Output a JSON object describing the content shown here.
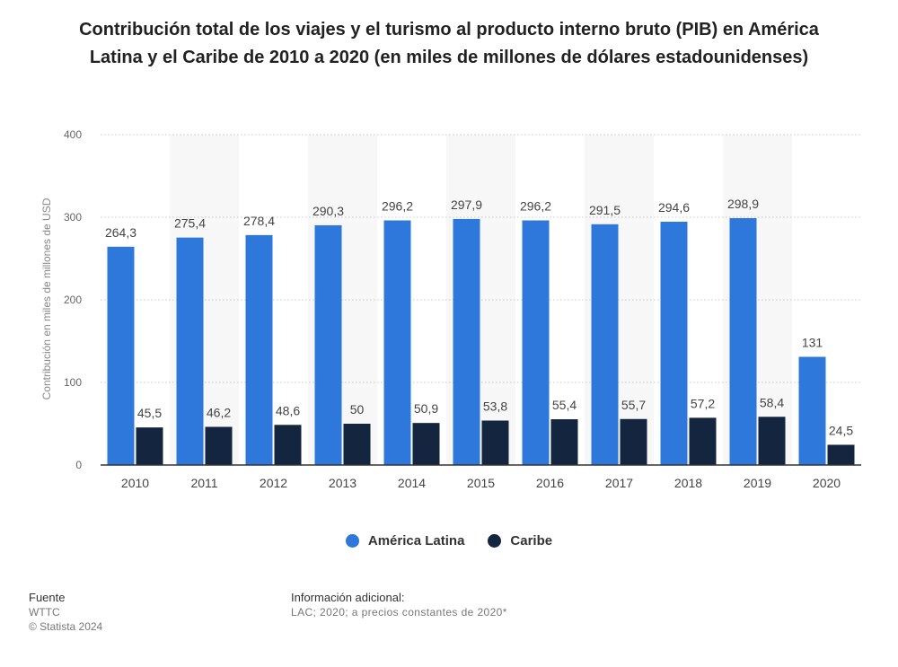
{
  "title": "Contribución total de los viajes y el turismo al producto interno bruto (PIB) en América Latina y el Caribe de 2010 a 2020 (en miles de millones de dólares estadounidenses)",
  "chart_data": {
    "type": "bar",
    "categories": [
      "2010",
      "2011",
      "2012",
      "2013",
      "2014",
      "2015",
      "2016",
      "2017",
      "2018",
      "2019",
      "2020"
    ],
    "series": [
      {
        "name": "América Latina",
        "color": "#2E78DC",
        "values": [
          264.3,
          275.4,
          278.4,
          290.3,
          296.2,
          297.9,
          296.2,
          291.5,
          294.6,
          298.9,
          131
        ],
        "labels": [
          "264,3",
          "275,4",
          "278,4",
          "290,3",
          "296,2",
          "297,9",
          "296,2",
          "291,5",
          "294,6",
          "298,9",
          "131"
        ]
      },
      {
        "name": "Caribe",
        "color": "#14253F",
        "values": [
          45.5,
          46.2,
          48.6,
          50,
          50.9,
          53.8,
          55.4,
          55.7,
          57.2,
          58.4,
          24.5
        ],
        "labels": [
          "45,5",
          "46,2",
          "48,6",
          "50",
          "50,9",
          "53,8",
          "55,4",
          "55,7",
          "57,2",
          "58,4",
          "24,5"
        ]
      }
    ],
    "ylabel": "Contribución en miles de millones de USD",
    "xlabel": "",
    "ylim": [
      0,
      400
    ],
    "yticks": [
      "0",
      "100",
      "200",
      "300",
      "400"
    ],
    "grid": true,
    "legend_position": "bottom"
  },
  "footer": {
    "source_label": "Fuente",
    "source_value": "WTTC",
    "copyright": "© Statista 2024",
    "info_label": "Información adicional:",
    "info_value": "LAC; 2020; a precios constantes de 2020*"
  }
}
